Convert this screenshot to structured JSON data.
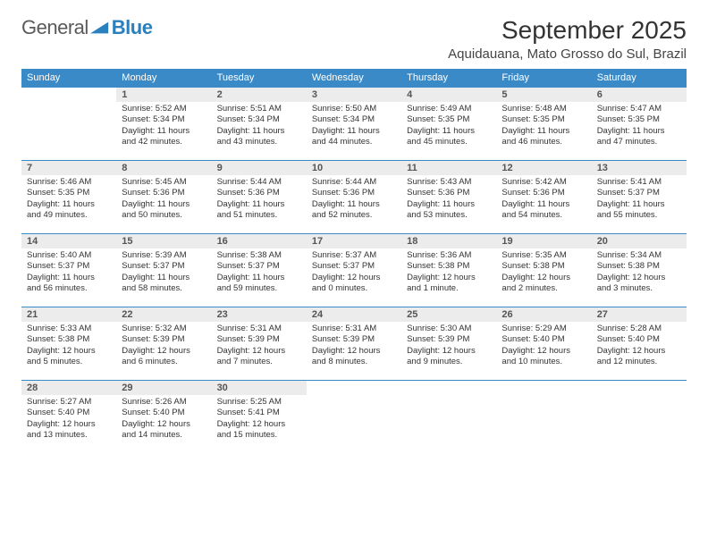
{
  "logo": {
    "text1": "General",
    "text2": "Blue"
  },
  "title": "September 2025",
  "location": "Aquidauana, Mato Grosso do Sul, Brazil",
  "colors": {
    "header_bg": "#3a8ac8",
    "header_fg": "#ffffff",
    "daynum_bg": "#ececec",
    "daynum_fg": "#555555",
    "rule": "#3a8ac8",
    "logo_gray": "#5a5a5a",
    "logo_blue": "#2a7fbf"
  },
  "weekdays": [
    "Sunday",
    "Monday",
    "Tuesday",
    "Wednesday",
    "Thursday",
    "Friday",
    "Saturday"
  ],
  "grid": [
    [
      null,
      {
        "n": "1",
        "sr": "5:52 AM",
        "ss": "5:34 PM",
        "dl": "11 hours and 42 minutes."
      },
      {
        "n": "2",
        "sr": "5:51 AM",
        "ss": "5:34 PM",
        "dl": "11 hours and 43 minutes."
      },
      {
        "n": "3",
        "sr": "5:50 AM",
        "ss": "5:34 PM",
        "dl": "11 hours and 44 minutes."
      },
      {
        "n": "4",
        "sr": "5:49 AM",
        "ss": "5:35 PM",
        "dl": "11 hours and 45 minutes."
      },
      {
        "n": "5",
        "sr": "5:48 AM",
        "ss": "5:35 PM",
        "dl": "11 hours and 46 minutes."
      },
      {
        "n": "6",
        "sr": "5:47 AM",
        "ss": "5:35 PM",
        "dl": "11 hours and 47 minutes."
      }
    ],
    [
      {
        "n": "7",
        "sr": "5:46 AM",
        "ss": "5:35 PM",
        "dl": "11 hours and 49 minutes."
      },
      {
        "n": "8",
        "sr": "5:45 AM",
        "ss": "5:36 PM",
        "dl": "11 hours and 50 minutes."
      },
      {
        "n": "9",
        "sr": "5:44 AM",
        "ss": "5:36 PM",
        "dl": "11 hours and 51 minutes."
      },
      {
        "n": "10",
        "sr": "5:44 AM",
        "ss": "5:36 PM",
        "dl": "11 hours and 52 minutes."
      },
      {
        "n": "11",
        "sr": "5:43 AM",
        "ss": "5:36 PM",
        "dl": "11 hours and 53 minutes."
      },
      {
        "n": "12",
        "sr": "5:42 AM",
        "ss": "5:36 PM",
        "dl": "11 hours and 54 minutes."
      },
      {
        "n": "13",
        "sr": "5:41 AM",
        "ss": "5:37 PM",
        "dl": "11 hours and 55 minutes."
      }
    ],
    [
      {
        "n": "14",
        "sr": "5:40 AM",
        "ss": "5:37 PM",
        "dl": "11 hours and 56 minutes."
      },
      {
        "n": "15",
        "sr": "5:39 AM",
        "ss": "5:37 PM",
        "dl": "11 hours and 58 minutes."
      },
      {
        "n": "16",
        "sr": "5:38 AM",
        "ss": "5:37 PM",
        "dl": "11 hours and 59 minutes."
      },
      {
        "n": "17",
        "sr": "5:37 AM",
        "ss": "5:37 PM",
        "dl": "12 hours and 0 minutes."
      },
      {
        "n": "18",
        "sr": "5:36 AM",
        "ss": "5:38 PM",
        "dl": "12 hours and 1 minute."
      },
      {
        "n": "19",
        "sr": "5:35 AM",
        "ss": "5:38 PM",
        "dl": "12 hours and 2 minutes."
      },
      {
        "n": "20",
        "sr": "5:34 AM",
        "ss": "5:38 PM",
        "dl": "12 hours and 3 minutes."
      }
    ],
    [
      {
        "n": "21",
        "sr": "5:33 AM",
        "ss": "5:38 PM",
        "dl": "12 hours and 5 minutes."
      },
      {
        "n": "22",
        "sr": "5:32 AM",
        "ss": "5:39 PM",
        "dl": "12 hours and 6 minutes."
      },
      {
        "n": "23",
        "sr": "5:31 AM",
        "ss": "5:39 PM",
        "dl": "12 hours and 7 minutes."
      },
      {
        "n": "24",
        "sr": "5:31 AM",
        "ss": "5:39 PM",
        "dl": "12 hours and 8 minutes."
      },
      {
        "n": "25",
        "sr": "5:30 AM",
        "ss": "5:39 PM",
        "dl": "12 hours and 9 minutes."
      },
      {
        "n": "26",
        "sr": "5:29 AM",
        "ss": "5:40 PM",
        "dl": "12 hours and 10 minutes."
      },
      {
        "n": "27",
        "sr": "5:28 AM",
        "ss": "5:40 PM",
        "dl": "12 hours and 12 minutes."
      }
    ],
    [
      {
        "n": "28",
        "sr": "5:27 AM",
        "ss": "5:40 PM",
        "dl": "12 hours and 13 minutes."
      },
      {
        "n": "29",
        "sr": "5:26 AM",
        "ss": "5:40 PM",
        "dl": "12 hours and 14 minutes."
      },
      {
        "n": "30",
        "sr": "5:25 AM",
        "ss": "5:41 PM",
        "dl": "12 hours and 15 minutes."
      },
      null,
      null,
      null,
      null
    ]
  ],
  "labels": {
    "sunrise": "Sunrise:",
    "sunset": "Sunset:",
    "daylight": "Daylight:"
  }
}
